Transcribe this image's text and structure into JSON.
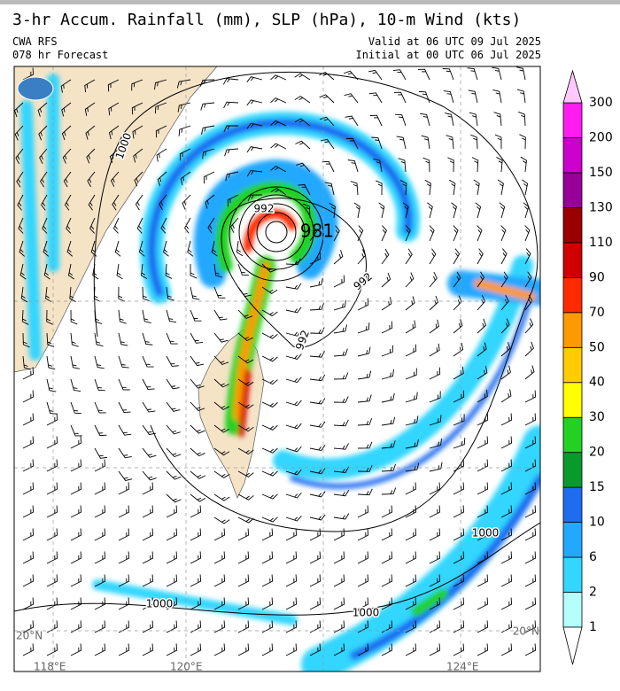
{
  "header": {
    "title": "3-hr Accum. Rainfall (mm), SLP (hPa), 10-m Wind (kts)",
    "model": "CWA RFS",
    "forecast": "078 hr Forecast",
    "valid": "Valid at 06 UTC 09 Jul 2025",
    "initial": "Initial at 00 UTC 06 Jul 2025"
  },
  "colorbar": {
    "labels": [
      1,
      2,
      6,
      10,
      15,
      20,
      30,
      40,
      50,
      70,
      90,
      110,
      130,
      150,
      200,
      300
    ],
    "colors": [
      "#b4fffc",
      "#33d6ff",
      "#22a8ff",
      "#1e6cf0",
      "#089a2a",
      "#22d122",
      "#ffff00",
      "#ffcc00",
      "#ff9900",
      "#ff2a00",
      "#d10000",
      "#9a0000",
      "#990099",
      "#cc00cc",
      "#ff1cf0"
    ],
    "under_color": "#ffffff",
    "over_color": "#ffc8ff"
  },
  "map": {
    "isobar_labels": [
      "1000",
      "992",
      "981",
      "992",
      "992",
      "1000",
      "1000",
      "1000"
    ],
    "grid_labels": [
      "20°N",
      "20°N",
      "118°E",
      "120°E",
      "124°E"
    ]
  }
}
